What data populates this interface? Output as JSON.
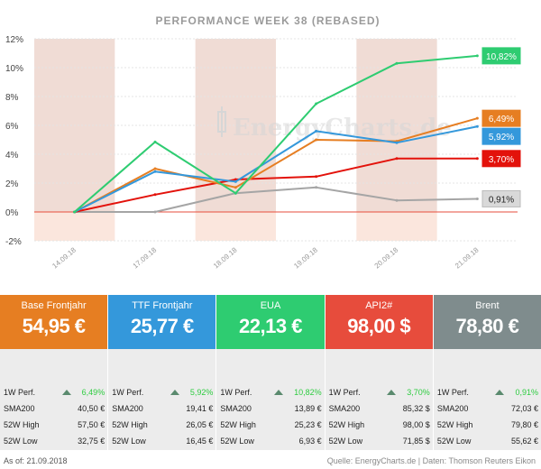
{
  "chart_data": {
    "type": "line",
    "title": "PERFORMANCE  WEEK 38 (REBASED)",
    "x": [
      "14.09.18",
      "17.09.18",
      "18.09.18",
      "19.09.18",
      "20.09.18",
      "21.09.18"
    ],
    "ylim": [
      -2,
      12
    ],
    "yticks": [
      -2,
      0,
      2,
      4,
      6,
      8,
      10,
      12
    ],
    "ytick_labels": [
      "-2%",
      "0%",
      "2%",
      "4%",
      "6%",
      "8%",
      "10%",
      "12%"
    ],
    "watermark": "EnergyCharts.de",
    "series": [
      {
        "name": "EUA",
        "color": "#2ecc71",
        "values": [
          0,
          4.85,
          1.3,
          7.5,
          10.3,
          10.82
        ],
        "end_label": "10,82%"
      },
      {
        "name": "Base Frontjahr",
        "color": "#e67e22",
        "values": [
          0,
          3.0,
          1.7,
          5.0,
          4.9,
          6.49
        ],
        "end_label": "6,49%"
      },
      {
        "name": "TTF Frontjahr",
        "color": "#3498db",
        "values": [
          0,
          2.8,
          2.1,
          5.6,
          4.8,
          5.92
        ],
        "end_label": "5,92%"
      },
      {
        "name": "API2#",
        "color": "#e3120b",
        "values": [
          0,
          1.2,
          2.25,
          2.45,
          3.7,
          3.7
        ],
        "end_label": "3,70%"
      },
      {
        "name": "Brent",
        "color": "#a5a5a5",
        "values": [
          0,
          0,
          1.3,
          1.7,
          0.8,
          0.91
        ],
        "end_label": "0,91%"
      }
    ]
  },
  "cards": [
    {
      "name": "Base Frontjahr",
      "price": "54,95 €",
      "color": "#e67e22",
      "perf": "6,49%",
      "sma200": "40,50 €",
      "high52": "57,50 €",
      "low52": "32,75 €"
    },
    {
      "name": "TTF Frontjahr",
      "price": "25,77 €",
      "color": "#3498db",
      "perf": "5,92%",
      "sma200": "19,41 €",
      "high52": "26,05 €",
      "low52": "16,45 €"
    },
    {
      "name": "EUA",
      "price": "22,13 €",
      "color": "#2ecc71",
      "perf": "10,82%",
      "sma200": "13,89 €",
      "high52": "25,23 €",
      "low52": "6,93 €"
    },
    {
      "name": "API2#",
      "price": "98,00 $",
      "color": "#e74c3c",
      "perf": "3,70%",
      "sma200": "85,32 $",
      "high52": "98,00 $",
      "low52": "71,85 $"
    },
    {
      "name": "Brent",
      "price": "78,80 €",
      "color": "#7f8c8d",
      "perf": "0,91%",
      "sma200": "72,03 €",
      "high52": "79,80 €",
      "low52": "55,62 €"
    }
  ],
  "labels": {
    "perf": "1W Perf.",
    "sma200": "SMA200",
    "high52": "52W High",
    "low52": "52W Low"
  },
  "footer": {
    "as_of": "As of: 21.09.2018",
    "source": "Quelle: EnergyCharts.de | Daten: Thomson Reuters Eikon"
  }
}
